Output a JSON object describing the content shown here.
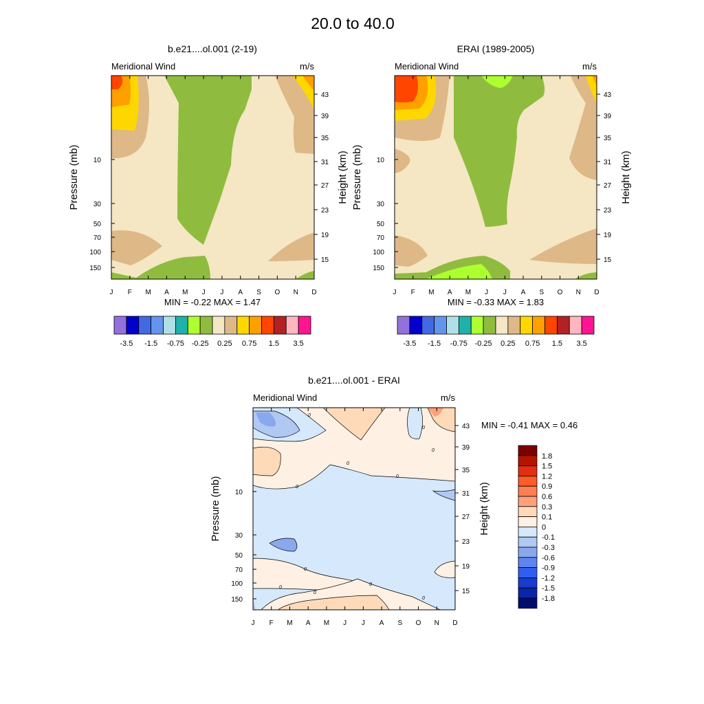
{
  "suptitle": "20.0 to  40.0",
  "month_ticks": [
    "J",
    "F",
    "M",
    "A",
    "M",
    "J",
    "J",
    "A",
    "S",
    "O",
    "N",
    "D"
  ],
  "pressure_ticks": [
    "10",
    "30",
    "50",
    "70",
    "100",
    "150"
  ],
  "height_ticks": [
    "43",
    "39",
    "35",
    "31",
    "27",
    "23",
    "19",
    "15"
  ],
  "pressure_label": "Pressure (mb)",
  "height_label": "Height (km)",
  "chart_data": [
    {
      "type": "heatmap",
      "panel": "model",
      "title": "b.e21....ol.001 (2-19)",
      "left_label": "Meridional Wind",
      "right_label": "m/s",
      "min_max_text": "MIN =  -0.22  MAX =   1.47",
      "min": -0.22,
      "max": 1.47,
      "x_categories": [
        "J",
        "F",
        "M",
        "A",
        "M",
        "J",
        "J",
        "A",
        "S",
        "O",
        "N",
        "D"
      ],
      "y_axis": "pressure (mb), log scale",
      "colorbar_labels": [
        "-3.5",
        "-1.5",
        "-0.75",
        "-0.25",
        "0.25",
        "0.75",
        "1.5",
        "3.5"
      ]
    },
    {
      "type": "heatmap",
      "panel": "obs",
      "title": "ERAI (1989-2005)",
      "left_label": "Meridional Wind",
      "right_label": "m/s",
      "min_max_text": "MIN =  -0.33  MAX =   1.83",
      "min": -0.33,
      "max": 1.83,
      "x_categories": [
        "J",
        "F",
        "M",
        "A",
        "M",
        "J",
        "J",
        "A",
        "S",
        "O",
        "N",
        "D"
      ],
      "y_axis": "pressure (mb), log scale",
      "colorbar_labels": [
        "-3.5",
        "-1.5",
        "-0.75",
        "-0.25",
        "0.25",
        "0.75",
        "1.5",
        "3.5"
      ]
    },
    {
      "type": "heatmap",
      "panel": "difference",
      "title": "b.e21....ol.001 - ERAI",
      "left_label": "Meridional Wind",
      "right_label": "m/s",
      "min_max_text": "MIN =  -0.41  MAX =   0.46",
      "min": -0.41,
      "max": 0.46,
      "contour_label": "0",
      "x_categories": [
        "J",
        "F",
        "M",
        "A",
        "M",
        "J",
        "J",
        "A",
        "S",
        "O",
        "N",
        "D"
      ],
      "y_axis": "pressure (mb), log scale",
      "colorbar_labels": [
        "1.8",
        "1.5",
        "1.2",
        "0.9",
        "0.6",
        "0.3",
        "0.1",
        "0",
        "-0.1",
        "-0.3",
        "-0.6",
        "-0.9",
        "-1.2",
        "-1.5",
        "-1.8"
      ]
    }
  ],
  "colors": {
    "main_scale": [
      "#9370db",
      "#0000cd",
      "#4169e1",
      "#6495ed",
      "#b0e0e6",
      "#20b2aa",
      "#adff2f",
      "#8fbc3f",
      "#f5e6c4",
      "#deb887",
      "#ffd700",
      "#ff9f00",
      "#ff4500",
      "#b22222",
      "#ffb6c1",
      "#ff1493"
    ],
    "diff_scale": [
      "#7a0000",
      "#b51400",
      "#e03010",
      "#ff5a28",
      "#ff7f50",
      "#ffa07a",
      "#ffdab9",
      "#fff0e4",
      "#d6e8fb",
      "#b0c8f2",
      "#89a8ee",
      "#5f84f0",
      "#3060f0",
      "#1a3ccc",
      "#0c24a8",
      "#000e70"
    ]
  }
}
